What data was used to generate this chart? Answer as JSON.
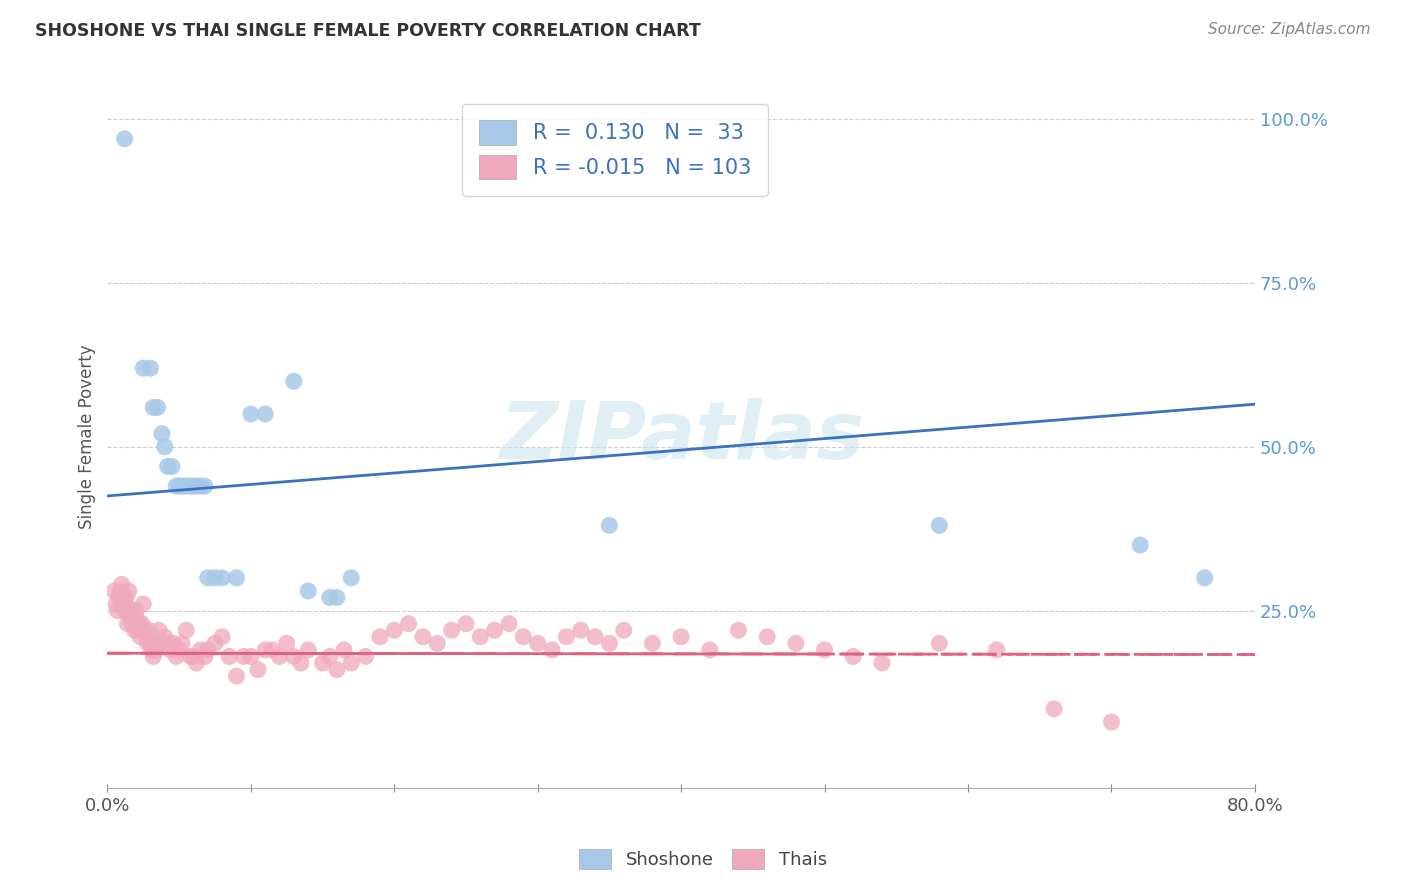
{
  "title": "SHOSHONE VS THAI SINGLE FEMALE POVERTY CORRELATION CHART",
  "source": "Source: ZipAtlas.com",
  "ylabel": "Single Female Poverty",
  "xlim": [
    0.0,
    0.8
  ],
  "ylim": [
    -0.02,
    1.05
  ],
  "ytick_vals": [
    0.25,
    0.5,
    0.75,
    1.0
  ],
  "ytick_labels": [
    "25.0%",
    "50.0%",
    "75.0%",
    "100.0%"
  ],
  "xtick_vals": [
    0.0,
    0.1,
    0.2,
    0.3,
    0.4,
    0.5,
    0.6,
    0.7,
    0.8
  ],
  "xtick_label_left": "0.0%",
  "xtick_label_right": "80.0%",
  "shoshone_R": 0.13,
  "shoshone_N": 33,
  "thai_R": -0.015,
  "thai_N": 103,
  "shoshone_dot_color": "#a8c8e8",
  "thai_dot_color": "#f0a8bc",
  "shoshone_line_color": "#3b72c0",
  "thai_line_color": "#e06080",
  "tick_color": "#5b9bd5",
  "watermark_text": "ZIPatlas",
  "watermark_color": "#cce4f0",
  "grid_color": "#cccccc",
  "background_color": "#ffffff",
  "shoshone_x": [
    0.012,
    0.025,
    0.03,
    0.032,
    0.035,
    0.038,
    0.04,
    0.042,
    0.045,
    0.048,
    0.05,
    0.052,
    0.055,
    0.058,
    0.06,
    0.062,
    0.065,
    0.068,
    0.07,
    0.075,
    0.08,
    0.09,
    0.1,
    0.11,
    0.13,
    0.14,
    0.155,
    0.16,
    0.17,
    0.35,
    0.58,
    0.72,
    0.765
  ],
  "shoshone_y": [
    0.97,
    0.62,
    0.62,
    0.56,
    0.56,
    0.52,
    0.5,
    0.47,
    0.47,
    0.44,
    0.44,
    0.44,
    0.44,
    0.44,
    0.44,
    0.44,
    0.44,
    0.44,
    0.3,
    0.3,
    0.3,
    0.3,
    0.55,
    0.55,
    0.6,
    0.28,
    0.27,
    0.27,
    0.3,
    0.38,
    0.38,
    0.35,
    0.3
  ],
  "thai_x": [
    0.005,
    0.006,
    0.007,
    0.008,
    0.009,
    0.01,
    0.01,
    0.011,
    0.012,
    0.013,
    0.013,
    0.014,
    0.014,
    0.015,
    0.015,
    0.016,
    0.017,
    0.018,
    0.019,
    0.02,
    0.02,
    0.021,
    0.022,
    0.023,
    0.024,
    0.025,
    0.026,
    0.027,
    0.028,
    0.029,
    0.03,
    0.031,
    0.032,
    0.033,
    0.034,
    0.035,
    0.036,
    0.038,
    0.04,
    0.042,
    0.044,
    0.046,
    0.048,
    0.05,
    0.052,
    0.055,
    0.058,
    0.06,
    0.062,
    0.065,
    0.068,
    0.07,
    0.075,
    0.08,
    0.085,
    0.09,
    0.095,
    0.1,
    0.105,
    0.11,
    0.115,
    0.12,
    0.125,
    0.13,
    0.135,
    0.14,
    0.15,
    0.155,
    0.16,
    0.165,
    0.17,
    0.18,
    0.19,
    0.2,
    0.21,
    0.22,
    0.23,
    0.24,
    0.25,
    0.26,
    0.27,
    0.28,
    0.29,
    0.3,
    0.31,
    0.32,
    0.33,
    0.34,
    0.35,
    0.36,
    0.38,
    0.4,
    0.42,
    0.44,
    0.46,
    0.48,
    0.5,
    0.52,
    0.54,
    0.58,
    0.62,
    0.66,
    0.7
  ],
  "thai_y": [
    0.28,
    0.26,
    0.25,
    0.27,
    0.28,
    0.27,
    0.29,
    0.26,
    0.25,
    0.26,
    0.27,
    0.25,
    0.23,
    0.25,
    0.28,
    0.24,
    0.23,
    0.24,
    0.22,
    0.24,
    0.25,
    0.22,
    0.23,
    0.21,
    0.23,
    0.26,
    0.22,
    0.21,
    0.2,
    0.22,
    0.2,
    0.19,
    0.18,
    0.2,
    0.19,
    0.2,
    0.22,
    0.2,
    0.21,
    0.2,
    0.19,
    0.2,
    0.18,
    0.19,
    0.2,
    0.22,
    0.18,
    0.18,
    0.17,
    0.19,
    0.18,
    0.19,
    0.2,
    0.21,
    0.18,
    0.15,
    0.18,
    0.18,
    0.16,
    0.19,
    0.19,
    0.18,
    0.2,
    0.18,
    0.17,
    0.19,
    0.17,
    0.18,
    0.16,
    0.19,
    0.17,
    0.18,
    0.21,
    0.22,
    0.23,
    0.21,
    0.2,
    0.22,
    0.23,
    0.21,
    0.22,
    0.23,
    0.21,
    0.2,
    0.19,
    0.21,
    0.22,
    0.21,
    0.2,
    0.22,
    0.2,
    0.21,
    0.19,
    0.22,
    0.21,
    0.2,
    0.19,
    0.18,
    0.17,
    0.2,
    0.19,
    0.1,
    0.08
  ],
  "shoshone_line_x0": 0.0,
  "shoshone_line_y0": 0.425,
  "shoshone_line_x1": 0.8,
  "shoshone_line_y1": 0.565,
  "thai_line_x0": 0.0,
  "thai_line_y0": 0.185,
  "thai_line_x1": 0.8,
  "thai_line_y1": 0.183
}
